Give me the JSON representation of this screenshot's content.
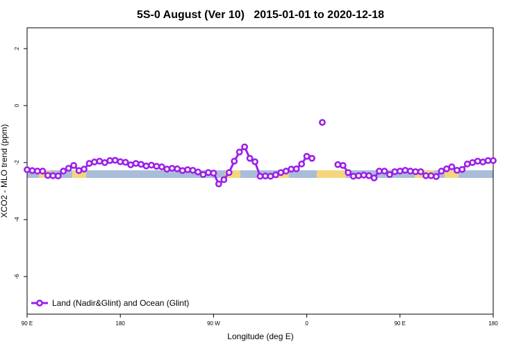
{
  "chart_data": {
    "type": "line",
    "title": "5S-0 August (Ver 10)   2015-01-01 to 2020-12-18",
    "x_label": "Longitude (deg E)",
    "y_label": "XCO2 - MLO trend (ppm)",
    "x": [
      90,
      95,
      100,
      105,
      110,
      115,
      120,
      125,
      130,
      135,
      140,
      145,
      150,
      155,
      160,
      165,
      170,
      175,
      180,
      185,
      190,
      195,
      200,
      205,
      210,
      215,
      220,
      225,
      230,
      235,
      240,
      245,
      250,
      255,
      260,
      265,
      270,
      275,
      280,
      285,
      290,
      295,
      300,
      305,
      310,
      315,
      320,
      325,
      330,
      335,
      340,
      345,
      350,
      355,
      360,
      365,
      370,
      375,
      380,
      385,
      390,
      395,
      400,
      405,
      410,
      415,
      420,
      425,
      430,
      435,
      440,
      445,
      450,
      455,
      460,
      465,
      470,
      475,
      480,
      485,
      490,
      495,
      500,
      505,
      510,
      515,
      520,
      525,
      530,
      535,
      540
    ],
    "series": [
      {
        "name": "Land (Nadir&Glint) and Ocean (Glint)",
        "color": "#9b1fe8",
        "values": [
          -2.25,
          -2.28,
          -2.3,
          -2.3,
          -2.45,
          -2.46,
          -2.47,
          -2.3,
          -2.2,
          -2.1,
          -2.28,
          -2.23,
          -2.03,
          -1.98,
          -1.95,
          -2.0,
          -1.93,
          -1.92,
          -1.97,
          -1.99,
          -2.08,
          -2.03,
          -2.06,
          -2.12,
          -2.09,
          -2.13,
          -2.15,
          -2.23,
          -2.2,
          -2.22,
          -2.28,
          -2.25,
          -2.27,
          -2.33,
          -2.42,
          -2.35,
          -2.37,
          -2.75,
          -2.6,
          -2.35,
          -1.95,
          -1.63,
          -1.45,
          -1.85,
          -1.97,
          -2.48,
          -2.47,
          -2.48,
          -2.43,
          -2.35,
          -2.3,
          -2.23,
          -2.22,
          -2.05,
          -1.78,
          -1.85,
          null,
          -0.59,
          null,
          null,
          -2.07,
          -2.1,
          -2.35,
          -2.48,
          -2.46,
          -2.44,
          -2.46,
          -2.54,
          -2.3,
          -2.3,
          -2.42,
          -2.32,
          -2.3,
          -2.27,
          -2.3,
          -2.32,
          -2.32,
          -2.46,
          -2.46,
          -2.49,
          -2.3,
          -2.22,
          -2.15,
          -2.27,
          -2.24,
          -2.05,
          -2.0,
          -1.95,
          -1.98,
          -1.93,
          -1.93
        ]
      }
    ],
    "xlim": [
      90,
      540
    ],
    "xticks": [
      {
        "value": 90,
        "label": "90 E"
      },
      180,
      {
        "value": 270,
        "label": "90 W"
      },
      {
        "value": 360,
        "label": "0"
      },
      {
        "value": 450,
        "label": "90 E"
      },
      {
        "value": 540,
        "label": "180"
      }
    ],
    "ylim": [
      -7.32,
      2.73
    ],
    "yticks": [
      -6,
      -4,
      -2,
      0,
      2
    ],
    "legend": "bottom-left"
  }
}
